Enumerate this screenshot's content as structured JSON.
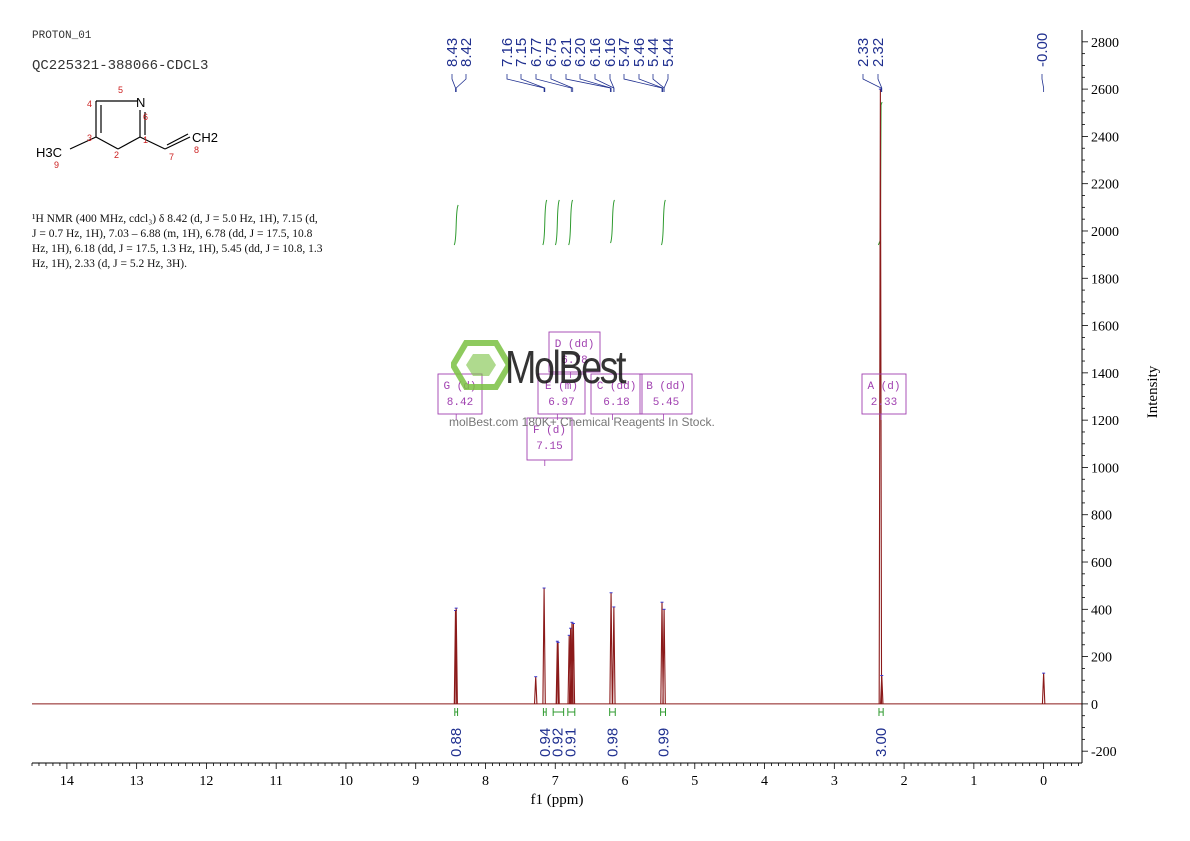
{
  "header": {
    "experiment": "PROTON_01",
    "sample": "QC225321-388066-CDCL3"
  },
  "structure": {
    "atoms": [
      "N",
      "H3C",
      "CH2"
    ],
    "numbers": [
      "1",
      "2",
      "3",
      "4",
      "5",
      "6",
      "7",
      "8",
      "9"
    ]
  },
  "nmr_description": {
    "line1": "¹H NMR (400 MHz, cdcl₃) δ 8.42 (d, J = 5.0 Hz, 1H), 7.15 (d,",
    "line2": "J = 0.7 Hz, 1H), 7.03 – 6.88 (m, 1H), 6.78 (dd, J = 17.5, 10.8",
    "line3": "Hz, 1H), 6.18 (dd, J = 17.5, 1.3 Hz, 1H), 5.45 (dd, J = 10.8, 1.3",
    "line4": "Hz, 1H), 2.33 (d, J = 5.2 Hz, 3H)."
  },
  "watermark": {
    "brand": "MolBest",
    "tagline": "molBest.com 180K+ Chemical Reagents In Stock."
  },
  "chart_data": {
    "type": "line",
    "xlabel": "f1 (ppm)",
    "ylabel": "Intensity",
    "xlim": [
      14.5,
      -0.55
    ],
    "ylim": [
      -250,
      2850
    ],
    "x_ticks": [
      14,
      13,
      12,
      11,
      10,
      9,
      8,
      7,
      6,
      5,
      4,
      3,
      2,
      1,
      0
    ],
    "y_ticks": [
      -200,
      0,
      200,
      400,
      600,
      800,
      1000,
      1200,
      1400,
      1600,
      1800,
      2000,
      2200,
      2400,
      2600,
      2800
    ],
    "peaks": [
      {
        "ppm": 8.43,
        "height": 395
      },
      {
        "ppm": 8.42,
        "height": 405
      },
      {
        "ppm": 7.28,
        "height": 115
      },
      {
        "ppm": 7.16,
        "height": 490
      },
      {
        "ppm": 6.97,
        "height": 265
      },
      {
        "ppm": 6.96,
        "height": 260
      },
      {
        "ppm": 6.8,
        "height": 290
      },
      {
        "ppm": 6.78,
        "height": 320
      },
      {
        "ppm": 6.76,
        "height": 345
      },
      {
        "ppm": 6.74,
        "height": 340
      },
      {
        "ppm": 6.2,
        "height": 470
      },
      {
        "ppm": 6.16,
        "height": 410
      },
      {
        "ppm": 5.47,
        "height": 430
      },
      {
        "ppm": 5.44,
        "height": 400
      },
      {
        "ppm": 2.34,
        "height": 2600
      },
      {
        "ppm": 2.32,
        "height": 120
      },
      {
        "ppm": 0.0,
        "height": 130
      }
    ],
    "peak_labels": [
      "8.43",
      "8.42",
      "7.16",
      "7.15",
      "6.77",
      "6.75",
      "6.21",
      "6.20",
      "6.16",
      "6.16",
      "5.47",
      "5.46",
      "5.44",
      "5.44",
      "2.33",
      "2.32",
      "-0.00"
    ],
    "multiplets": [
      {
        "id": "G",
        "type": "(d)",
        "shift": "8.42",
        "ppm": 8.42
      },
      {
        "id": "D",
        "type": "(dd)",
        "shift": "6.78",
        "ppm": 6.78
      },
      {
        "id": "E",
        "type": "(m)",
        "shift": "6.97",
        "ppm": 6.97
      },
      {
        "id": "C",
        "type": "(dd)",
        "shift": "6.18",
        "ppm": 6.18
      },
      {
        "id": "B",
        "type": "(dd)",
        "shift": "5.45",
        "ppm": 5.45
      },
      {
        "id": "F",
        "type": "(d)",
        "shift": "7.15",
        "ppm": 7.15
      },
      {
        "id": "A",
        "type": "(d)",
        "shift": "2.33",
        "ppm": 2.33
      }
    ],
    "integrals": [
      {
        "ppm": 8.42,
        "value": "0.88"
      },
      {
        "ppm": 7.15,
        "value": "0.94"
      },
      {
        "ppm": 6.97,
        "value": "0.92"
      },
      {
        "ppm": 6.78,
        "value": "0.91"
      },
      {
        "ppm": 6.18,
        "value": "0.98"
      },
      {
        "ppm": 5.45,
        "value": "0.99"
      },
      {
        "ppm": 2.33,
        "value": "3.00"
      }
    ],
    "colors": {
      "spectrum": "#8b1a1a",
      "peak_label": "#1f2f8f",
      "integral": "#2e9a2e",
      "multiplet_box": "#a040b0",
      "structure_number": "#cc2020",
      "watermark_green": "#7ac142"
    }
  }
}
